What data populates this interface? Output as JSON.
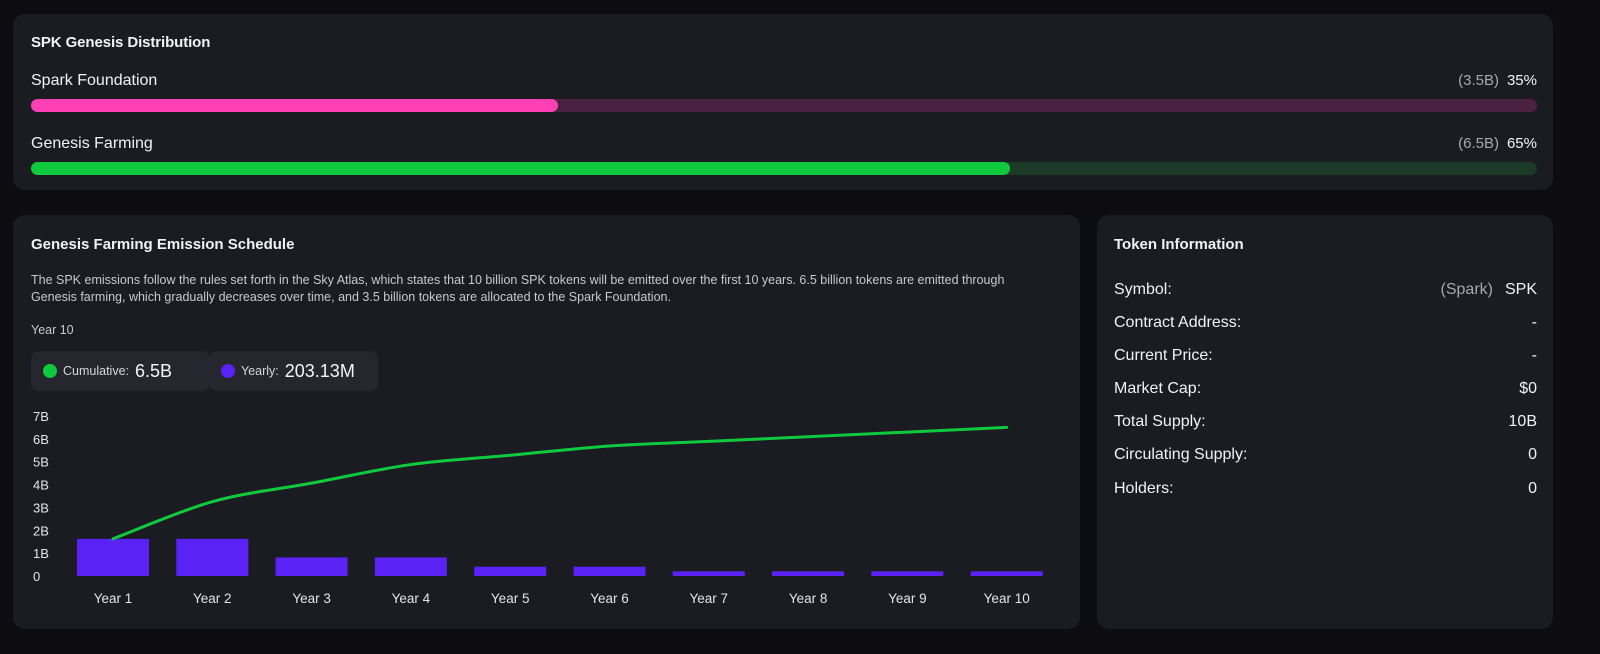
{
  "distribution": {
    "title": "SPK Genesis Distribution",
    "rows": [
      {
        "label": "Spark Foundation",
        "amount": "(3.5B)",
        "percent_label": "35%",
        "fraction": 0.35,
        "color": "#ff3fb4"
      },
      {
        "label": "Genesis Farming",
        "amount": "(6.5B)",
        "percent_label": "65%",
        "fraction": 0.65,
        "color": "#0fc93e"
      }
    ]
  },
  "emission": {
    "title": "Genesis Farming Emission Schedule",
    "description": "The SPK emissions follow the rules set forth in the Sky Atlas, which states that 10 billion SPK tokens will be emitted over the first 10 years. 6.5 billion tokens are emitted through Genesis farming, which gradually decreases over time, and 3.5 billion tokens are allocated to the Spark Foundation.",
    "year_label": "Year 10",
    "cumulative": {
      "label": "Cumulative:",
      "value": "6.5B"
    },
    "yearly": {
      "label": "Yearly:",
      "value": "203.13M"
    }
  },
  "chart_data": {
    "type": "bar",
    "categories": [
      "Year 1",
      "Year 2",
      "Year 3",
      "Year 4",
      "Year 5",
      "Year 6",
      "Year 7",
      "Year 8",
      "Year 9",
      "Year 10"
    ],
    "y_ticks": [
      "0",
      "1B",
      "2B",
      "3B",
      "4B",
      "5B",
      "6B",
      "7B"
    ],
    "ylim": [
      0,
      7
    ],
    "series": [
      {
        "name": "Yearly",
        "type": "bar",
        "color": "#5a22f5",
        "values": [
          1.625,
          1.625,
          0.8125,
          0.8125,
          0.40625,
          0.40625,
          0.203125,
          0.203125,
          0.203125,
          0.203125
        ]
      },
      {
        "name": "Cumulative",
        "type": "line",
        "color": "#0fc93e",
        "values": [
          1.625,
          3.25,
          4.0625,
          4.875,
          5.28125,
          5.6875,
          5.890625,
          6.09375,
          6.296875,
          6.5
        ]
      }
    ],
    "grid": false,
    "legend": "none"
  },
  "token_info": {
    "title": "Token Information",
    "rows": [
      {
        "key": "Symbol:",
        "sub": "(Spark)",
        "value": "SPK"
      },
      {
        "key": "Contract Address:",
        "sub": "",
        "value": "-"
      },
      {
        "key": "Current Price:",
        "sub": "",
        "value": "-"
      },
      {
        "key": "Market Cap:",
        "sub": "",
        "value": "$0"
      },
      {
        "key": "Total Supply:",
        "sub": "",
        "value": "10B"
      },
      {
        "key": "Circulating Supply:",
        "sub": "",
        "value": "0"
      },
      {
        "key": "Holders:",
        "sub": "",
        "value": "0"
      }
    ]
  }
}
